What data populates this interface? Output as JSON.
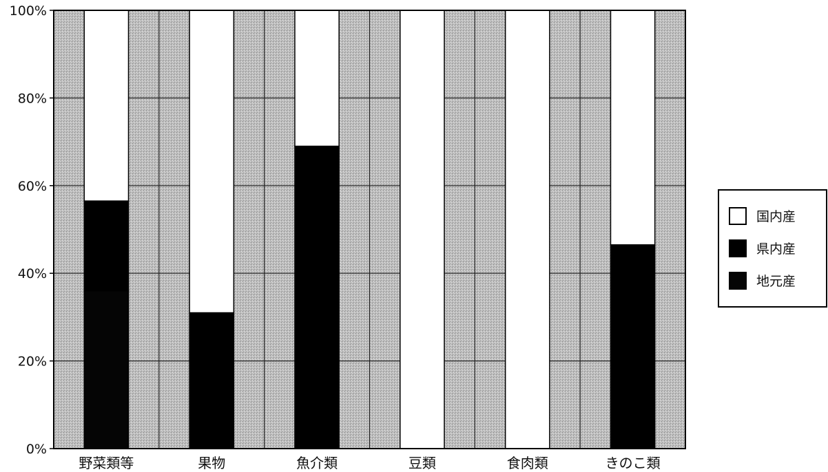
{
  "chart_data": {
    "type": "bar",
    "stacked": true,
    "categories": [
      "野菜類等",
      "果物",
      "魚介類",
      "豆類",
      "食肉類",
      "きのこ類"
    ],
    "series": [
      {
        "name": "地元産",
        "values": [
          36,
          0,
          0,
          0,
          0,
          0
        ]
      },
      {
        "name": "県内産",
        "values": [
          20.5,
          31,
          69,
          0,
          0,
          46.5
        ]
      },
      {
        "name": "国内産",
        "values": [
          43.5,
          69,
          31,
          100,
          100,
          53.5
        ]
      }
    ],
    "yticks": [
      "0%",
      "20%",
      "40%",
      "60%",
      "80%",
      "100%"
    ],
    "ylim": [
      0,
      100
    ],
    "grid": true,
    "legend": [
      "国内産",
      "県内産",
      "地元産"
    ],
    "legend_position": "right",
    "colors": {
      "国内産": "#ffffff",
      "県内産": "#000000",
      "地元産": "#050505",
      "plot_background": "#b9b9b9"
    }
  }
}
